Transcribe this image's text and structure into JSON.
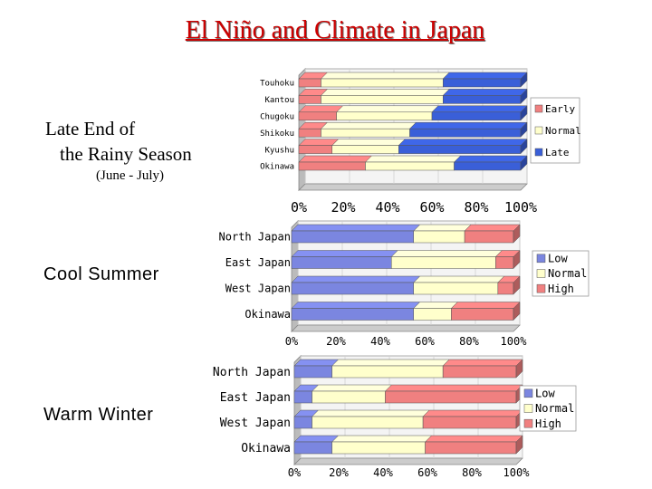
{
  "page": {
    "title": "El Niño and Climate in Japan",
    "sections": [
      {
        "line1": "Late End of",
        "line2": "the Rainy Season",
        "line3": "(June - July)"
      },
      {
        "line1": "Cool Summer"
      },
      {
        "line1": "Warm Winter"
      }
    ]
  },
  "chart_data": [
    {
      "type": "bar",
      "stacked": true,
      "orientation": "horizontal",
      "categories": [
        "Touhoku",
        "Kantou",
        "Chugoku",
        "Shikoku",
        "Kyushu",
        "Okinawa"
      ],
      "series": [
        {
          "name": "Early",
          "color": "#f08080",
          "values": [
            10,
            10,
            17,
            10,
            15,
            30
          ]
        },
        {
          "name": "Normal",
          "color": "#ffffcc",
          "values": [
            55,
            55,
            43,
            40,
            30,
            40
          ]
        },
        {
          "name": "Late",
          "color": "#3a5fd8",
          "values": [
            35,
            35,
            40,
            50,
            55,
            30
          ]
        }
      ],
      "xlim": [
        0,
        100
      ],
      "xticks": [
        "0%",
        "20%",
        "40%",
        "60%",
        "80%",
        "100%"
      ],
      "legend": "right"
    },
    {
      "type": "bar",
      "stacked": true,
      "orientation": "horizontal",
      "categories": [
        "North Japan",
        "East Japan",
        "West Japan",
        "Okinawa"
      ],
      "series": [
        {
          "name": "Low",
          "color": "#7b86e0",
          "values": [
            55,
            45,
            55,
            55
          ]
        },
        {
          "name": "Normal",
          "color": "#ffffcc",
          "values": [
            23,
            47,
            38,
            17
          ]
        },
        {
          "name": "High",
          "color": "#f08080",
          "values": [
            22,
            8,
            7,
            28
          ]
        }
      ],
      "xlim": [
        0,
        100
      ],
      "xticks": [
        "0%",
        "20%",
        "40%",
        "60%",
        "80%",
        "100%"
      ],
      "legend": "right"
    },
    {
      "type": "bar",
      "stacked": true,
      "orientation": "horizontal",
      "categories": [
        "North Japan",
        "East Japan",
        "West Japan",
        "Okinawa"
      ],
      "series": [
        {
          "name": "Low",
          "color": "#7b86e0",
          "values": [
            17,
            8,
            8,
            17
          ]
        },
        {
          "name": "Normal",
          "color": "#ffffcc",
          "values": [
            50,
            33,
            50,
            42
          ]
        },
        {
          "name": "High",
          "color": "#f08080",
          "values": [
            33,
            59,
            42,
            41
          ]
        }
      ],
      "xlim": [
        0,
        100
      ],
      "xticks": [
        "0%",
        "20%",
        "40%",
        "60%",
        "80%",
        "100%"
      ],
      "legend": "right"
    }
  ]
}
